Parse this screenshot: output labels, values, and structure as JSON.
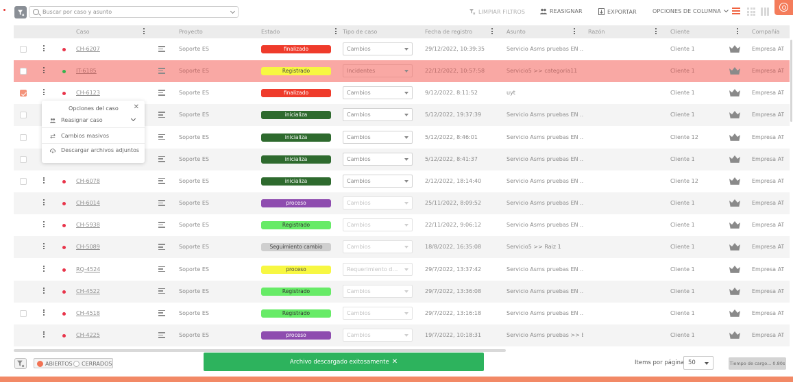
{
  "search": {
    "placeholder": "Buscar por caso y asunto"
  },
  "toolbar": {
    "clear_filters": "LIMPIAR FILTROS",
    "reassign": "REASIGNAR",
    "export": "EXPORTAR",
    "column_options": "OPCIONES DE COLUMNA"
  },
  "columns": {
    "caso": "Caso",
    "proyecto": "Proyecto",
    "estado": "Estado",
    "tipo": "Tipo de caso",
    "fecha": "Fecha de registro",
    "asunto": "Asunto",
    "razon": "Razón",
    "cliente": "Cliente",
    "compania": "Compañía"
  },
  "rows": [
    {
      "case": "CH-6207",
      "dot": "#e8344a",
      "project": "Soporte ES",
      "status": "finalizado",
      "status_color": "#ef3b2b",
      "type": "Cambios",
      "type_enabled": true,
      "date": "29/12/2022, 10:39:35",
      "subject": "Servicio Asms pruebas EN ...",
      "client": "Cliente 1",
      "company": "Empresa AT"
    },
    {
      "case": "IT-6185",
      "dot": "#37b24d",
      "project": "Soporte ES",
      "status": "Registrado",
      "status_color": "#f7f742",
      "status_text_color": "#444",
      "type": "Incidentes",
      "type_enabled": true,
      "date": "22/12/2022, 10:57:58",
      "subject": "Servicio5 >> categoria11",
      "client": "Cliente 1",
      "company": "Empresa AT"
    },
    {
      "case": "CH-6123",
      "dot": "#e8344a",
      "project": "Soporte ES",
      "status": "finalizado",
      "status_color": "#ef3b2b",
      "type": "Cambios",
      "type_enabled": true,
      "date": "9/12/2022, 8:11:52",
      "subject": "uyt",
      "client": "Cliente 1",
      "company": "Empresa AT"
    },
    {
      "case": "",
      "dot": "",
      "project": "Soporte ES",
      "status": "inicializa",
      "status_color": "#2e6a2e",
      "type": "Cambios",
      "type_enabled": true,
      "date": "5/12/2022, 19:37:39",
      "subject": "Servicio Asms pruebas EN ...",
      "client": "Cliente 1",
      "company": "Empresa AT"
    },
    {
      "case": "",
      "dot": "",
      "project": "Soporte ES",
      "status": "inicializa",
      "status_color": "#2e6a2e",
      "type": "Cambios",
      "type_enabled": true,
      "date": "5/12/2022, 8:46:01",
      "subject": "Servicio Asms pruebas EN ...",
      "client": "Cliente 12",
      "company": "Empresa AT"
    },
    {
      "case": "",
      "dot": "",
      "project": "Soporte ES",
      "status": "inicializa",
      "status_color": "#2e6a2e",
      "type": "Cambios",
      "type_enabled": true,
      "date": "5/12/2022, 8:41:37",
      "subject": "Servicio Asms pruebas EN ...",
      "client": "Cliente 1",
      "company": "Empresa AT"
    },
    {
      "case": "CH-6078",
      "dot": "#e8344a",
      "project": "Soporte ES",
      "status": "inicializa",
      "status_color": "#2e6a2e",
      "type": "Cambios",
      "type_enabled": true,
      "date": "2/12/2022, 18:14:40",
      "subject": "Servicio Asms pruebas EN ...",
      "client": "Cliente 12",
      "company": "Empresa AT"
    },
    {
      "case": "CH-6014",
      "dot": "#e8344a",
      "project": "Soporte ES",
      "status": "proceso",
      "status_color": "#8e4caf",
      "type": "Cambios",
      "type_enabled": false,
      "date": "25/11/2022, 8:09:52",
      "subject": "Servicio Asms pruebas EN ...",
      "client": "Cliente 1",
      "company": "Empresa AT"
    },
    {
      "case": "CH-5938",
      "dot": "#e8344a",
      "project": "Soporte ES",
      "status": "Registrado",
      "status_color": "#67eb67",
      "status_text_color": "#333",
      "type": "Cambios",
      "type_enabled": false,
      "date": "22/11/2022, 9:06:12",
      "subject": "Servicio Asms pruebas EN ...",
      "client": "Cliente 1",
      "company": "Empresa AT"
    },
    {
      "case": "CH-5089",
      "dot": "#e8344a",
      "project": "Soporte ES",
      "status": "Seguimiento cambio",
      "status_color": "#cfcfcf",
      "status_text_color": "#444",
      "type": "Cambios",
      "type_enabled": false,
      "date": "18/8/2022, 16:35:08",
      "subject": "Servicio5 >> Raiz 1",
      "client": "Cliente 1",
      "company": "Empresa AT"
    },
    {
      "case": "RQ-4524",
      "dot": "#e8344a",
      "project": "Soporte ES",
      "status": "proceso",
      "status_color": "#f7f742",
      "status_text_color": "#444",
      "type": "Requerimiento de ...",
      "type_enabled": false,
      "date": "29/7/2022, 13:37:42",
      "subject": "Servicio Asms pruebas EN ...",
      "client": "Cliente 1",
      "company": "Empresa AT"
    },
    {
      "case": "CH-4522",
      "dot": "#e8344a",
      "project": "Soporte ES",
      "status": "Registrado",
      "status_color": "#67eb67",
      "status_text_color": "#333",
      "type": "Cambios",
      "type_enabled": false,
      "date": "29/7/2022, 13:36:08",
      "subject": "Servicio Asms pruebas EN ...",
      "client": "Cliente 1",
      "company": "Empresa AT"
    },
    {
      "case": "CH-4518",
      "dot": "#e8344a",
      "project": "Soporte ES",
      "status": "Registrado",
      "status_color": "#67eb67",
      "status_text_color": "#333",
      "type": "Cambios",
      "type_enabled": false,
      "date": "29/7/2022, 13:16:18",
      "subject": "Servicio Asms pruebas EN ...",
      "client": "Cliente 1",
      "company": "Empresa AT"
    },
    {
      "case": "CH-4225",
      "dot": "#e8344a",
      "project": "Soporte ES",
      "status": "proceso",
      "status_color": "#8e4caf",
      "type": "Cambios",
      "type_enabled": false,
      "date": "19/7/2022, 10:18:31",
      "subject": "Servicio Asms pruebas >> E...",
      "client": "Cliente 1",
      "company": "Empresa AT"
    }
  ],
  "popup": {
    "title": "Opciones del caso",
    "items": [
      "Reasignar caso",
      "Cambios masivos",
      "Descargar archivos adjuntos"
    ]
  },
  "footer": {
    "open_label": "ABIERTOS",
    "closed_label": "CERRADOS",
    "toast": "Archivo descargado exitosamente",
    "items_per_page_label": "Items por página",
    "items_per_page_value": "50",
    "load_time": "Tiempo de cargo... 0.80s"
  },
  "colors": {
    "accent": "#f0623f",
    "highlight_row": "#f9a8a4",
    "toast": "#2db35d"
  }
}
